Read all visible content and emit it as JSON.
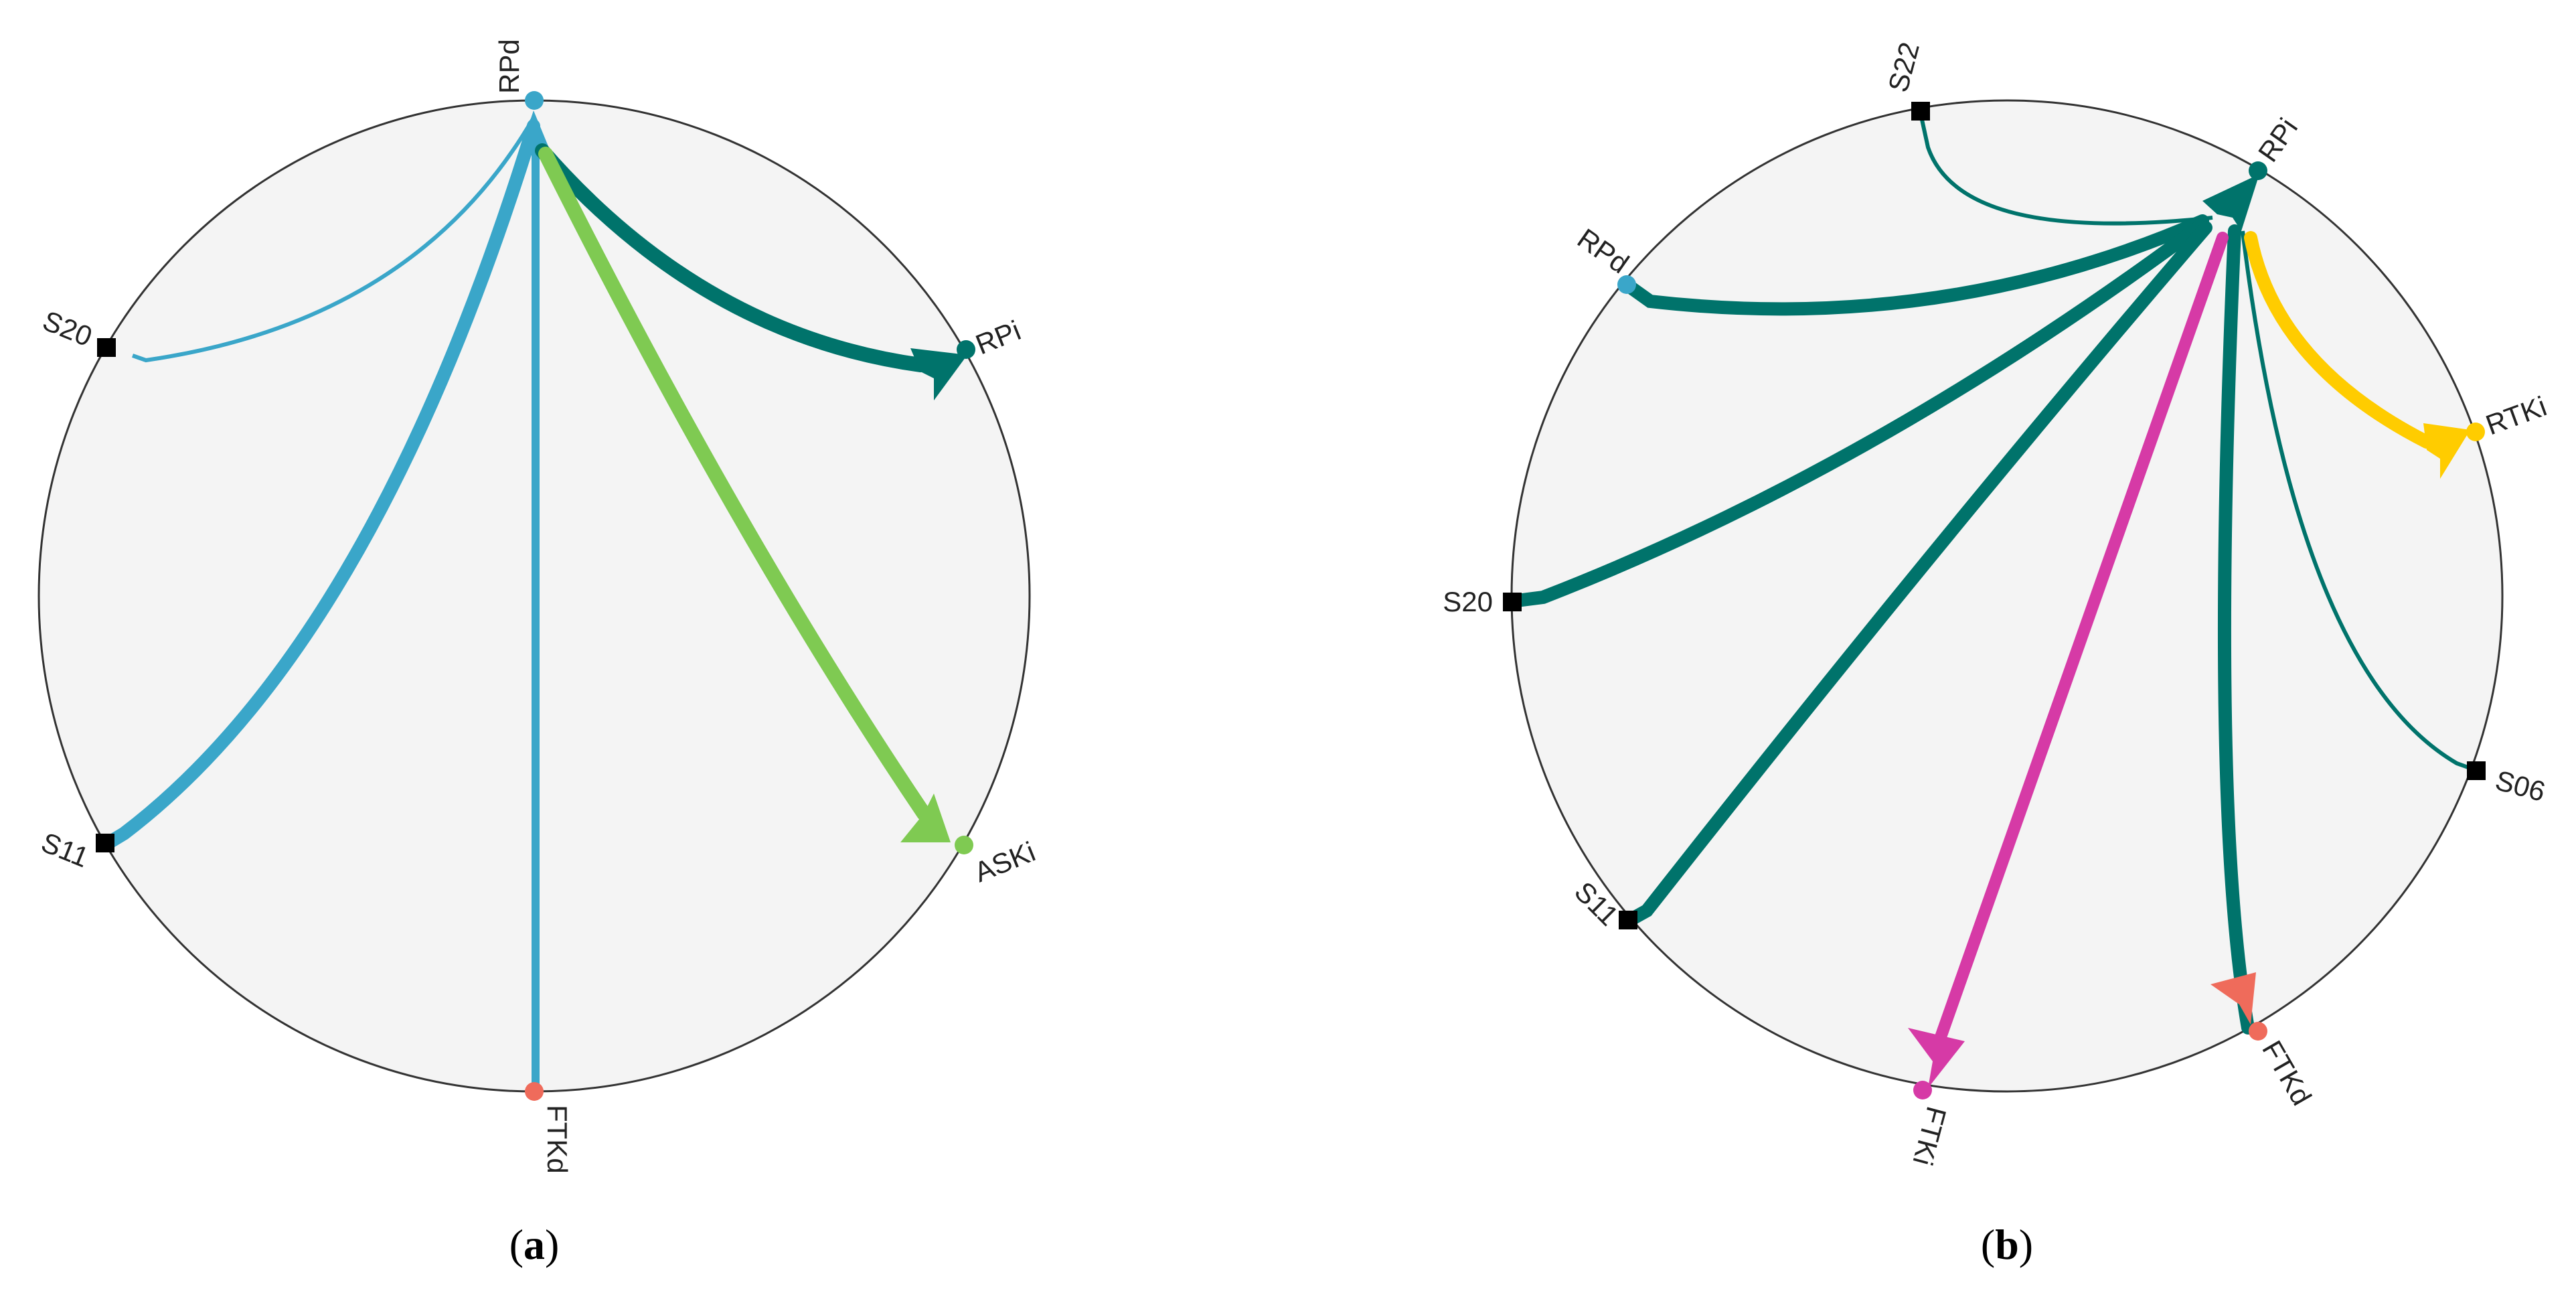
{
  "panels": [
    {
      "id": "a",
      "caption": "a",
      "nodes": [
        {
          "key": "RPd",
          "label": "RPd",
          "shape": "dot",
          "color": "#3aa6c9"
        },
        {
          "key": "RPi",
          "label": "RPi",
          "shape": "dot",
          "color": "#00736b"
        },
        {
          "key": "ASKi",
          "label": "ASKi",
          "shape": "dot",
          "color": "#7fca52"
        },
        {
          "key": "FTKd",
          "label": "FTKd",
          "shape": "dot",
          "color": "#ef6b5b"
        },
        {
          "key": "S11",
          "label": "S11",
          "shape": "square",
          "color": "#000000"
        },
        {
          "key": "S20",
          "label": "S20",
          "shape": "square",
          "color": "#000000"
        }
      ],
      "edges": [
        {
          "from": "S20",
          "to": "RPd",
          "color": "#3aa6c9",
          "weight": "thin"
        },
        {
          "from": "S11",
          "to": "RPd",
          "color": "#3aa6c9",
          "weight": "thick"
        },
        {
          "from": "FTKd",
          "to": "RPd",
          "color": "#3aa6c9",
          "weight": "medium"
        },
        {
          "from": "RPd",
          "to": "RPi",
          "color": "#00736b",
          "weight": "thick"
        },
        {
          "from": "RPd",
          "to": "ASKi",
          "color": "#7fca52",
          "weight": "thick"
        }
      ]
    },
    {
      "id": "b",
      "caption": "b",
      "nodes": [
        {
          "key": "S22",
          "label": "S22",
          "shape": "square",
          "color": "#000000"
        },
        {
          "key": "RPi",
          "label": "RPi",
          "shape": "dot",
          "color": "#00736b"
        },
        {
          "key": "RPd",
          "label": "RPd",
          "shape": "dot",
          "color": "#3aa6c9"
        },
        {
          "key": "RTKi",
          "label": "RTKi",
          "shape": "dot",
          "color": "#ffcc00"
        },
        {
          "key": "S20",
          "label": "S20",
          "shape": "square",
          "color": "#000000"
        },
        {
          "key": "S06",
          "label": "S06",
          "shape": "square",
          "color": "#000000"
        },
        {
          "key": "S11",
          "label": "S11",
          "shape": "square",
          "color": "#000000"
        },
        {
          "key": "FTKd",
          "label": "FTKd",
          "shape": "dot",
          "color": "#ef6b5b"
        },
        {
          "key": "FTKi",
          "label": "FTKi",
          "shape": "dot",
          "color": "#d63aa6"
        }
      ],
      "edges": [
        {
          "from": "S22",
          "to": "RPi",
          "color": "#00736b",
          "weight": "thin"
        },
        {
          "from": "RPd",
          "to": "RPi",
          "color": "#00736b",
          "weight": "thick"
        },
        {
          "from": "S20",
          "to": "RPi",
          "color": "#00736b",
          "weight": "thick"
        },
        {
          "from": "S11",
          "to": "RPi",
          "color": "#00736b",
          "weight": "thick"
        },
        {
          "from": "S06",
          "to": "RPi",
          "color": "#00736b",
          "weight": "thin"
        },
        {
          "from": "FTKd",
          "to": "RPi",
          "color": "#00736b",
          "weight": "thick"
        },
        {
          "from": "RPi",
          "to": "RTKi",
          "color": "#ffcc00",
          "weight": "thick"
        },
        {
          "from": "RPi",
          "to": "FTKi",
          "color": "#d63aa6",
          "weight": "thick"
        },
        {
          "from": "RPi",
          "to": "FTKd",
          "color": "#ef6b5b",
          "weight": "thick"
        }
      ]
    }
  ]
}
